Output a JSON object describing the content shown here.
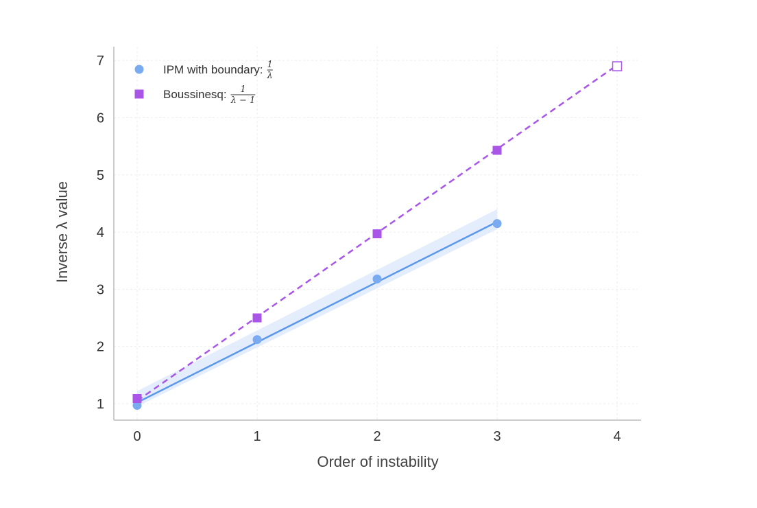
{
  "chart_data": {
    "type": "line",
    "xlabel": "Order of instability",
    "ylabel": "Inverse λ value",
    "xlim": [
      0,
      4
    ],
    "ylim": [
      1,
      7
    ],
    "x_ticks": [
      0,
      1,
      2,
      3,
      4
    ],
    "y_ticks": [
      1,
      2,
      3,
      4,
      5,
      6,
      7
    ],
    "grid": true,
    "legend_position": "top-left",
    "series": [
      {
        "name": "IPM with boundary: 1/λ",
        "legend_prefix": "IPM with boundary:",
        "legend_numerator": "1",
        "legend_denominator": "λ",
        "marker": "circle",
        "color": "#7aaaf0",
        "line_color": "#5b97ea",
        "line_style": "solid",
        "x": [
          0,
          1,
          2,
          3
        ],
        "values": [
          0.97,
          2.12,
          3.18,
          4.15
        ],
        "fit": {
          "x": [
            0,
            3
          ],
          "y": [
            1.02,
            4.18
          ]
        },
        "band_upper": {
          "x": [
            0,
            3
          ],
          "y": [
            1.22,
            4.4
          ]
        },
        "band_lower": {
          "x": [
            0,
            3
          ],
          "y": [
            0.95,
            4.05
          ]
        }
      },
      {
        "name": "Boussinesq: 1/(λ − 1)",
        "legend_prefix": "Boussinesq:",
        "legend_numerator": "1",
        "legend_denominator": "λ − 1",
        "marker": "square",
        "color": "#a855e8",
        "line_color": "#a855e8",
        "line_style": "dashed",
        "x": [
          0,
          1,
          2,
          3,
          4
        ],
        "values": [
          1.09,
          2.5,
          3.97,
          5.43,
          6.9
        ],
        "hollow_last": true,
        "fit": {
          "x": [
            0,
            4
          ],
          "y": [
            1.05,
            6.92
          ]
        }
      }
    ]
  }
}
